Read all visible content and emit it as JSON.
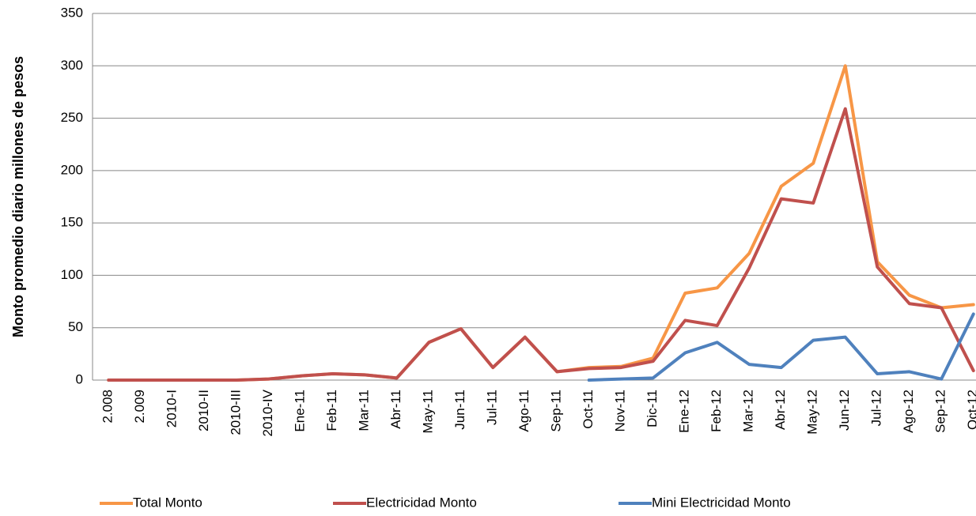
{
  "chart_data": {
    "type": "line",
    "y_label": "Monto promedio diario millones de pesos",
    "categories": [
      "2.008",
      "2.009",
      "2010-I",
      "2010-II",
      "2010-III",
      "2010-IV",
      "Ene-11",
      "Feb-11",
      "Mar-11",
      "Abr-11",
      "May-11",
      "Jun-11",
      "Jul-11",
      "Ago-11",
      "Sep-11",
      "Oct-11",
      "Nov-11",
      "Dic-11",
      "Ene-12",
      "Feb-12",
      "Mar-12",
      "Abr-12",
      "May-12",
      "Jun-12",
      "Jul-12",
      "Ago-12",
      "Sep-12",
      "Oct-12"
    ],
    "series": [
      {
        "name": "Total Monto",
        "color": "#f79646",
        "values": [
          0,
          0,
          0,
          0,
          0,
          1,
          4,
          6,
          5,
          2,
          36,
          49,
          12,
          41,
          8,
          12,
          13,
          21,
          83,
          88,
          121,
          185,
          207,
          300,
          113,
          81,
          69,
          72
        ]
      },
      {
        "name": "Electricidad Monto",
        "color": "#c0504d",
        "values": [
          0,
          0,
          0,
          0,
          0,
          1,
          4,
          6,
          5,
          2,
          36,
          49,
          12,
          41,
          8,
          11,
          12,
          18,
          57,
          52,
          107,
          173,
          169,
          259,
          108,
          73,
          69,
          9
        ]
      },
      {
        "name": "Mini Electricidad Monto",
        "color": "#4f81bd",
        "values": [
          null,
          null,
          null,
          null,
          null,
          null,
          null,
          null,
          null,
          null,
          null,
          null,
          null,
          null,
          null,
          0,
          1,
          2,
          26,
          36,
          15,
          12,
          38,
          41,
          6,
          8,
          1,
          63
        ]
      }
    ],
    "ylim": [
      0,
      350
    ],
    "yticks": [
      0,
      50,
      100,
      150,
      200,
      250,
      300,
      350
    ],
    "grid": true,
    "legend": "bottom"
  }
}
